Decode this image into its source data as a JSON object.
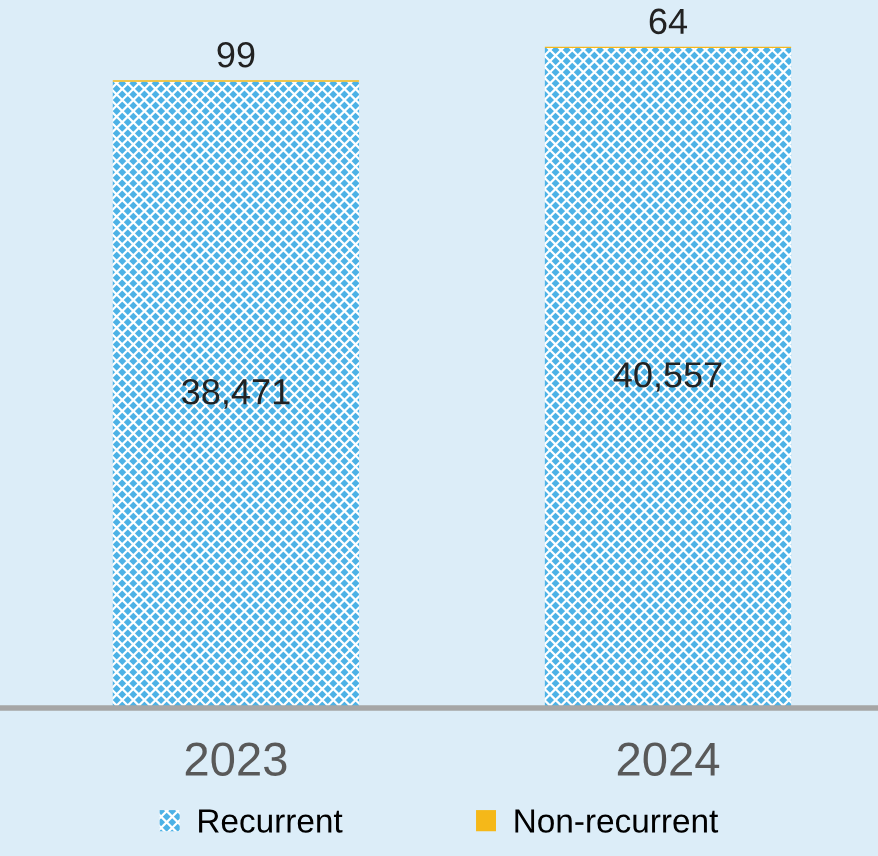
{
  "chart_data": {
    "type": "bar",
    "stacked": true,
    "categories": [
      "2023",
      "2024"
    ],
    "ylim": [
      0,
      43500
    ],
    "legend": "bottom",
    "grid": false,
    "series": [
      {
        "name": "Recurrent",
        "color": "#4db2e6",
        "values": [
          38471,
          40557
        ],
        "value_labels": [
          "38,471",
          "40,557"
        ]
      },
      {
        "name": "Non-recurrent",
        "color": "#f5b819",
        "values": [
          99,
          64
        ],
        "value_labels": [
          "99",
          "64"
        ]
      }
    ]
  }
}
